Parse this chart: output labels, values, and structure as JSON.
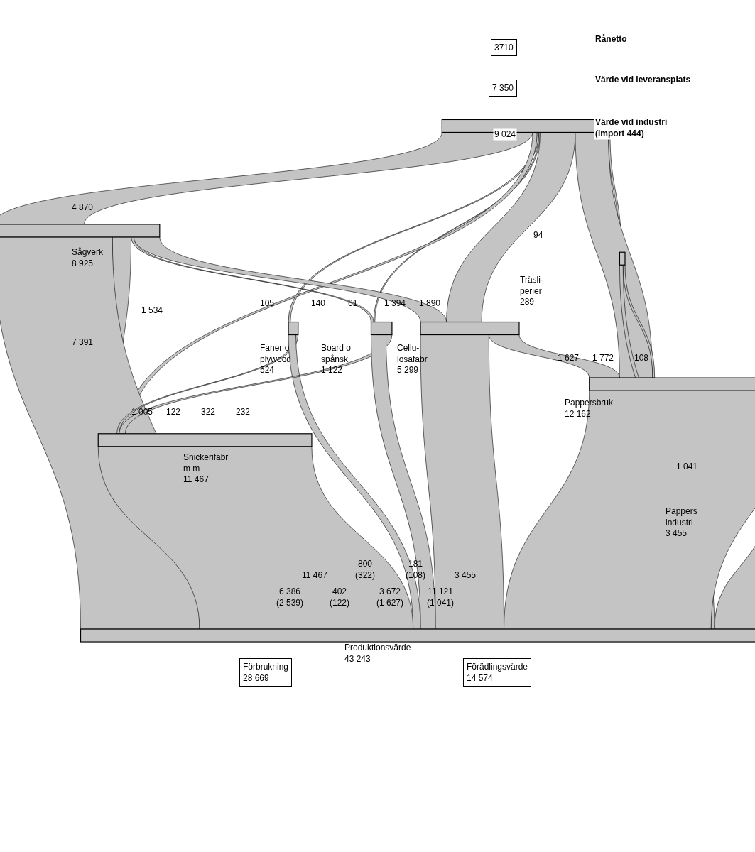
{
  "chart_data": {
    "type": "other",
    "categories": [
      "3710\nRånetto",
      "7 350\nVärde vid leveransplats",
      "9 024\nVärde vid industri\n(import 444)",
      "Sågverk\n8 925",
      "Träsli-\nperier\n289",
      "Faner o\nplywood\n524",
      "Board o\nspånsk\n1 122",
      "Cellu-\nlosafabr\n5 299",
      "Snickerifabr\nm m\n11 467",
      "Pappersbruk\n12 162",
      "Pappers\nindustri\n3 455",
      "Produktionsvärde\n43 243",
      "Förbrukning\n28 669",
      "Förädlingsvärde\n14 574"
    ],
    "series": [
      {
        "values": [
          null,
          null,
          null,
          null,
          null,
          null,
          null,
          null,
          null,
          null,
          null,
          null,
          null,
          null
        ]
      },
      {
        "values": [
          null,
          null,
          null,
          null,
          null,
          null,
          null,
          null,
          null,
          null,
          null,
          null,
          null,
          null
        ]
      },
      {
        "values": [
          null,
          null,
          null,
          4870,
          94,
          105,
          61,
          1890,
          232,
          1772,
          null,
          null,
          null,
          null
        ],
        "value_labels": [
          null,
          null,
          null,
          "4 870",
          "94",
          "105",
          "61",
          "1 890",
          "232",
          "1 772",
          null,
          null,
          null,
          null
        ]
      },
      {
        "values": [
          null,
          null,
          null,
          null,
          null,
          null,
          140,
          1394,
          1005,
          null,
          null,
          6386,
          null,
          null
        ],
        "value_labels": [
          null,
          null,
          null,
          null,
          null,
          null,
          "140",
          "1 394",
          "1 005",
          null,
          null,
          "6 386\n(2 539)",
          null,
          null
        ]
      },
      {
        "values": [
          null,
          null,
          null,
          null,
          null,
          null,
          null,
          null,
          null,
          108,
          null,
          181,
          null,
          null
        ],
        "value_labels": [
          null,
          null,
          null,
          null,
          null,
          null,
          null,
          null,
          null,
          "108",
          null,
          "181\n(108)",
          null,
          null
        ]
      },
      {
        "values": [
          null,
          null,
          null,
          null,
          null,
          null,
          null,
          null,
          122,
          null,
          null,
          402,
          null,
          null
        ],
        "value_labels": [
          null,
          null,
          null,
          null,
          null,
          null,
          null,
          null,
          "122",
          null,
          null,
          "402\n(122)",
          null,
          null
        ]
      },
      {
        "values": [
          null,
          null,
          null,
          null,
          null,
          null,
          null,
          null,
          322,
          null,
          null,
          800,
          null,
          null
        ],
        "value_labels": [
          null,
          null,
          null,
          null,
          null,
          null,
          null,
          null,
          "322",
          null,
          null,
          "800\n(322)",
          null,
          null
        ]
      },
      {
        "values": [
          null,
          null,
          null,
          null,
          null,
          null,
          null,
          null,
          null,
          1627,
          null,
          3672,
          null,
          null
        ],
        "value_labels": [
          null,
          null,
          null,
          null,
          null,
          null,
          null,
          null,
          null,
          "1 627",
          null,
          "3 672\n(1 627)",
          null,
          null
        ]
      },
      {
        "values": [
          null,
          null,
          null,
          null,
          null,
          null,
          null,
          null,
          null,
          null,
          null,
          11467,
          null,
          null
        ],
        "value_labels": [
          null,
          null,
          null,
          null,
          null,
          null,
          null,
          null,
          null,
          null,
          null,
          "11 467",
          null,
          null
        ]
      },
      {
        "values": [
          null,
          null,
          null,
          null,
          null,
          null,
          null,
          null,
          null,
          null,
          1041,
          11121,
          null,
          null
        ],
        "value_labels": [
          null,
          null,
          null,
          null,
          null,
          null,
          null,
          null,
          null,
          null,
          "1 041",
          "11 121\n(1 041)",
          null,
          null
        ]
      },
      {
        "values": [
          null,
          null,
          null,
          null,
          null,
          null,
          null,
          null,
          null,
          null,
          null,
          3455,
          null,
          null
        ],
        "value_labels": [
          null,
          null,
          null,
          null,
          null,
          null,
          null,
          null,
          null,
          null,
          null,
          "3 455",
          null,
          null
        ]
      },
      {
        "values": [
          null,
          null,
          null,
          null,
          null,
          null,
          null,
          null,
          null,
          null,
          null,
          null,
          null,
          null
        ]
      }
    ],
    "annotations": [
      "7 391",
      "1 534"
    ],
    "color": "#c4c4c4"
  }
}
